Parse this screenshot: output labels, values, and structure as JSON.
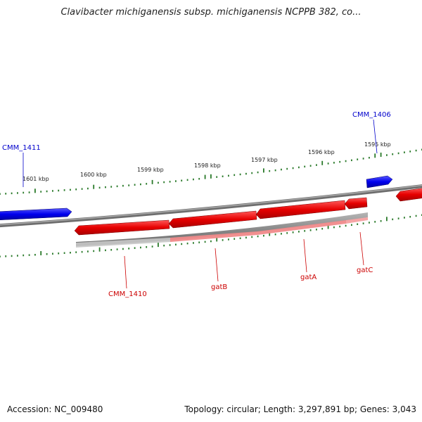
{
  "title": "Clavibacter michiganensis subsp. michiganensis NCPPB 382, co...",
  "footer": {
    "accession": "Accession: NC_009480",
    "summary": "Topology: circular; Length: 3,297,891 bp; Genes: 3,043"
  },
  "scale": {
    "unit": "kbp",
    "ticks": [
      {
        "kbp": 1601,
        "label": "1601 kbp"
      },
      {
        "kbp": 1600,
        "label": "1600 kbp"
      },
      {
        "kbp": 1599,
        "label": "1599 kbp"
      },
      {
        "kbp": 1598,
        "label": "1598 kbp"
      },
      {
        "kbp": 1597,
        "label": "1597 kbp"
      },
      {
        "kbp": 1596,
        "label": "1596 kbp"
      },
      {
        "kbp": 1595,
        "label": "1595 kbp"
      }
    ]
  },
  "genes": [
    {
      "name": "CMM_1411",
      "strand": "forward",
      "color": "#0000ff"
    },
    {
      "name": "CMM_1406",
      "strand": "forward",
      "color": "#0000ff"
    },
    {
      "name": "CMM_1410",
      "strand": "reverse",
      "color": "#dd0000"
    },
    {
      "name": "gatB",
      "strand": "reverse",
      "color": "#dd0000"
    },
    {
      "name": "gatA",
      "strand": "reverse",
      "color": "#dd0000"
    },
    {
      "name": "gatC",
      "strand": "reverse",
      "color": "#dd0000"
    }
  ],
  "colors": {
    "forward": "#0000ff",
    "reverse": "#dd0000",
    "backbone": "#808080",
    "ticks": "#2a7a2a"
  }
}
